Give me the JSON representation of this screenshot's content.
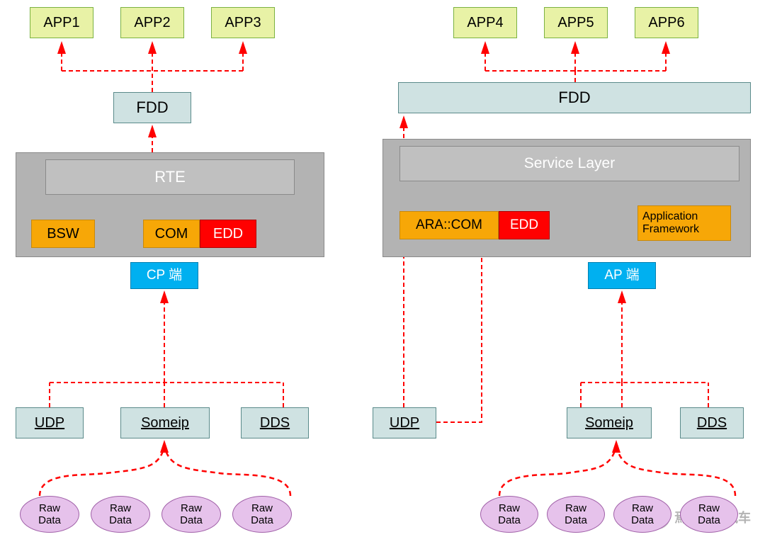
{
  "colors": {
    "app_fill": "#e8f2a6",
    "app_border": "#7bb241",
    "blue_fill": "#cfe2e2",
    "blue_border": "#5a8a8a",
    "gray_fill": "#b3b3b3",
    "gray_border": "#8a8a8a",
    "rte_fill": "#c0c0c0",
    "orange_fill": "#f7a707",
    "orange_border": "#c7890d",
    "red_fill": "#ff0000",
    "red_border": "#b00000",
    "cyan_fill": "#00b0f0",
    "cyan_border": "#0080b0",
    "raw_fill": "#e6c2eb",
    "raw_border": "#a060a8",
    "arrow": "#ff0000",
    "text_dark": "#000000",
    "text_white": "#ffffff"
  },
  "left": {
    "apps": [
      "APP1",
      "APP2",
      "APP3"
    ],
    "fdd": "FDD",
    "gray_panel": true,
    "rte": "RTE",
    "bsw": "BSW",
    "com": "COM",
    "edd": "EDD",
    "cp": "CP 端",
    "protocols": [
      "UDP",
      "Someip",
      "DDS"
    ],
    "raw_count": 4,
    "raw_label": "Raw\nData"
  },
  "right": {
    "apps": [
      "APP4",
      "APP5",
      "APP6"
    ],
    "fdd": "FDD",
    "service": "Service Layer",
    "ara": "ARA::COM",
    "edd": "EDD",
    "app_fw": "Application\nFramework",
    "ap": "AP 端",
    "udp": "UDP",
    "protocols": [
      "Someip",
      "DDS"
    ],
    "raw_count": 4,
    "raw_label": "Raw\nData"
  },
  "watermark": "焉知智能汽车"
}
